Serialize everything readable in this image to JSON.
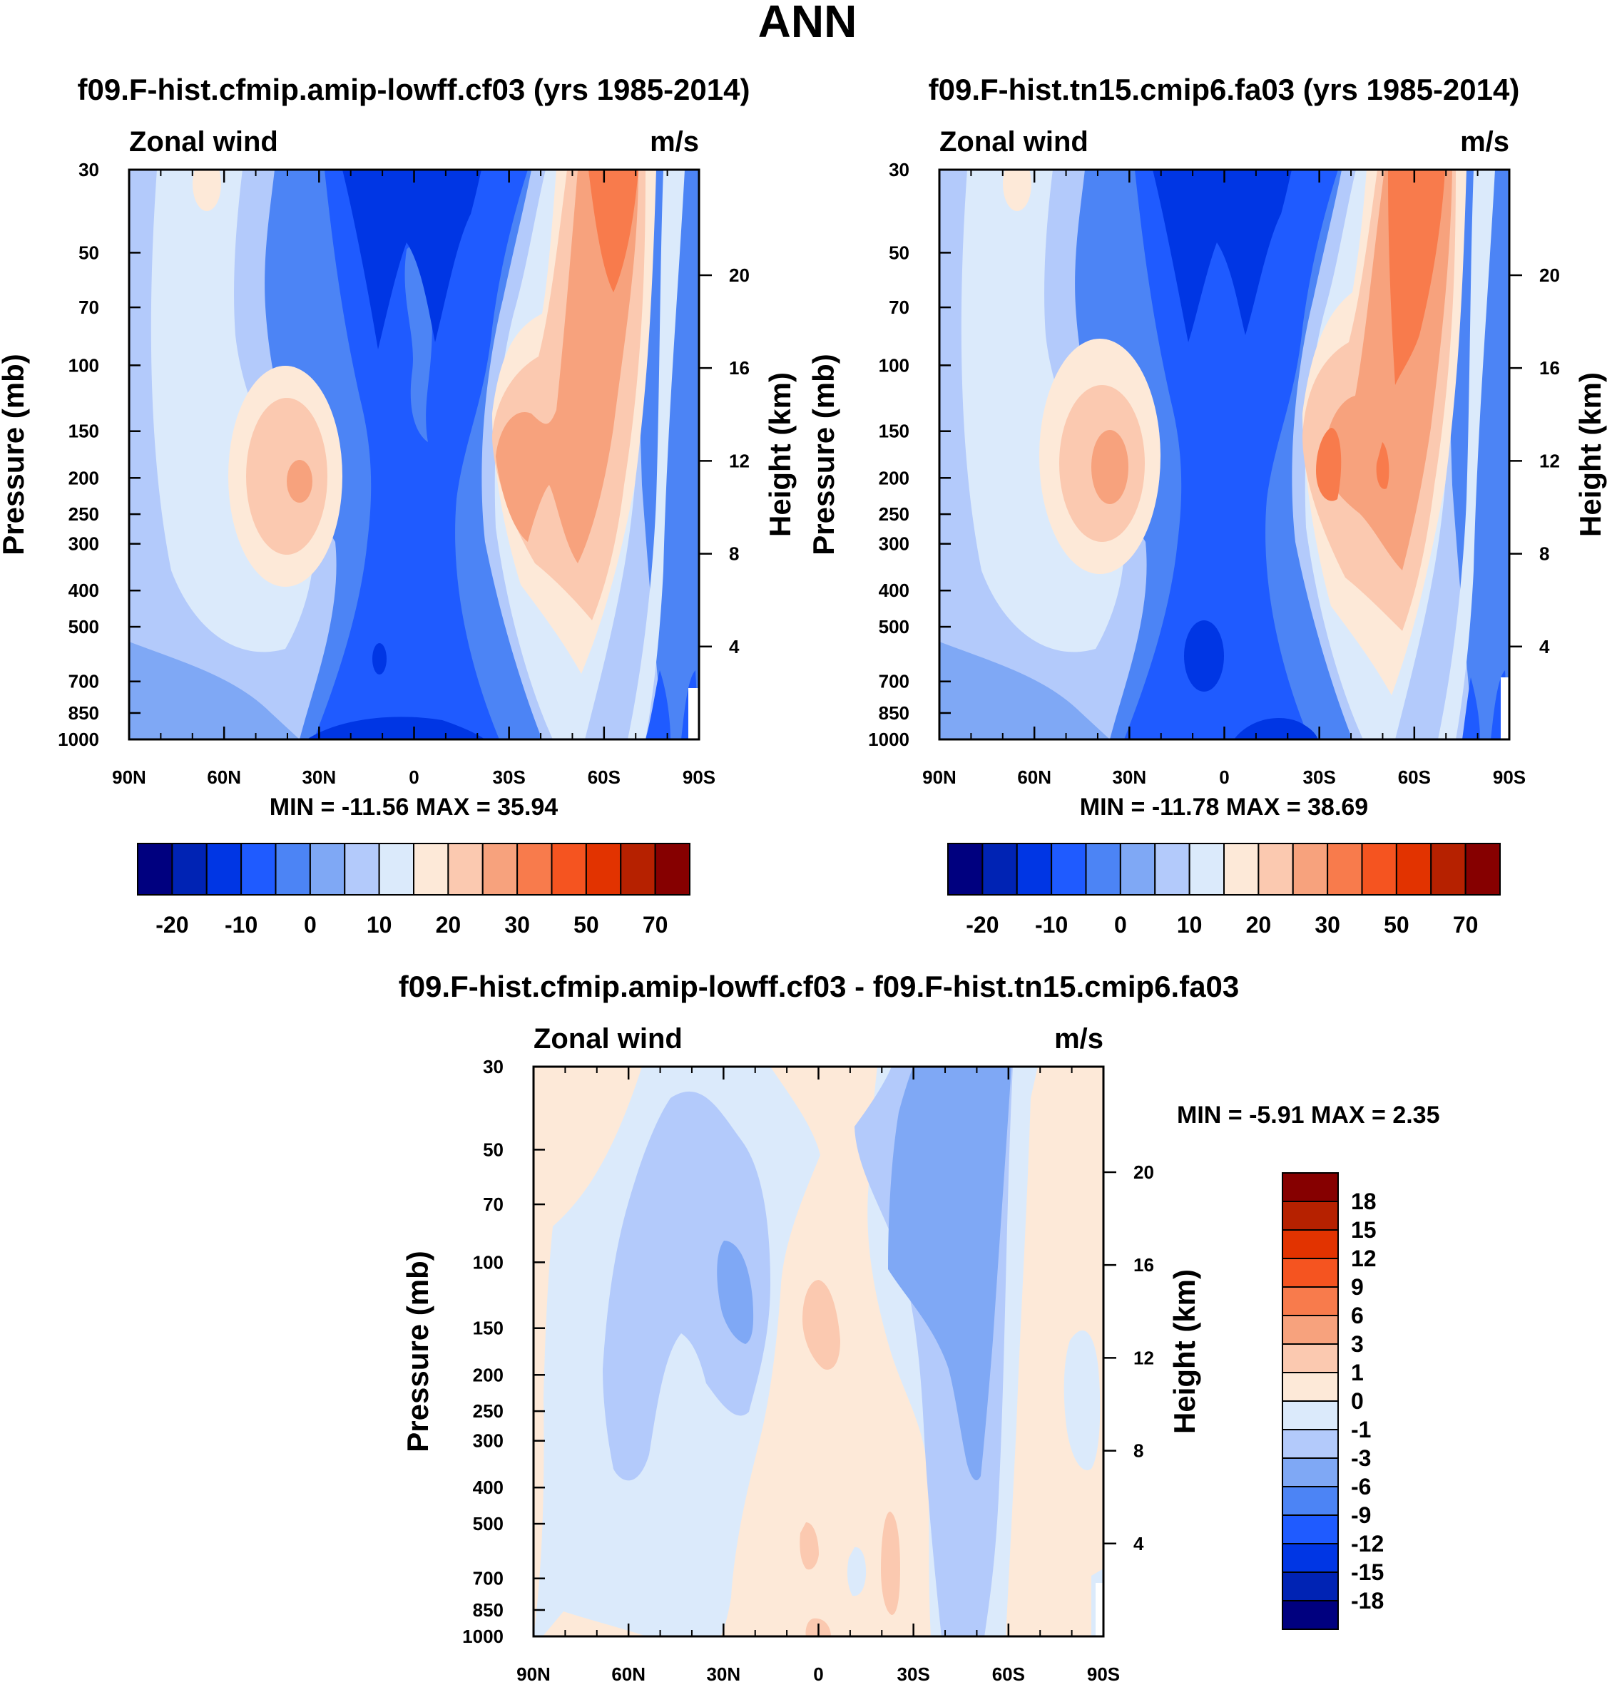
{
  "title": "ANN",
  "palette": [
    "#00007f",
    "#0023b4",
    "#0036e4",
    "#1f5bff",
    "#4c84f5",
    "#7fa8f5",
    "#b3cafb",
    "#dbeafb",
    "#fde9d8",
    "#fbc9b0",
    "#f7a27d",
    "#f87b4c",
    "#f55420",
    "#e23300",
    "#b62100",
    "#860000"
  ],
  "chart_data": [
    {
      "type": "contour",
      "title": "f09.F-hist.cfmip.amip-lowff.cf03 (yrs 1985-2014)",
      "left_label": "Zonal wind",
      "right_label": "m/s",
      "ylabel": "Pressure (mb)",
      "y2label": "Height (km)",
      "x_ticks": [
        "90N",
        "60N",
        "30N",
        "0",
        "30S",
        "60S",
        "90S"
      ],
      "x_range": [
        90,
        -90
      ],
      "y_ticks": [
        "30",
        "50",
        "70",
        "100",
        "150",
        "200",
        "250",
        "300",
        "400",
        "500",
        "700",
        "850",
        "1000"
      ],
      "y_range_mb": [
        30,
        1000
      ],
      "y2_ticks": [
        "20",
        "16",
        "12",
        "8",
        "4"
      ],
      "stats": "MIN = -11.56  MAX =  35.94",
      "colorbar_labels": [
        "-20",
        "-10",
        "0",
        "10",
        "20",
        "30",
        "50",
        "70"
      ],
      "min": -11.56,
      "max": 35.94
    },
    {
      "type": "contour",
      "title": "f09.F-hist.tn15.cmip6.fa03 (yrs 1985-2014)",
      "left_label": "Zonal wind",
      "right_label": "m/s",
      "ylabel": "Pressure (mb)",
      "y2label": "Height (km)",
      "x_ticks": [
        "90N",
        "60N",
        "30N",
        "0",
        "30S",
        "60S",
        "90S"
      ],
      "x_range": [
        90,
        -90
      ],
      "y_ticks": [
        "30",
        "50",
        "70",
        "100",
        "150",
        "200",
        "250",
        "300",
        "400",
        "500",
        "700",
        "850",
        "1000"
      ],
      "y_range_mb": [
        30,
        1000
      ],
      "y2_ticks": [
        "20",
        "16",
        "12",
        "8",
        "4"
      ],
      "stats": "MIN = -11.78  MAX =  38.69",
      "colorbar_labels": [
        "-20",
        "-10",
        "0",
        "10",
        "20",
        "30",
        "50",
        "70"
      ],
      "min": -11.78,
      "max": 38.69
    },
    {
      "type": "contour",
      "title": "f09.F-hist.cfmip.amip-lowff.cf03 - f09.F-hist.tn15.cmip6.fa03",
      "left_label": "Zonal wind",
      "right_label": "m/s",
      "ylabel": "Pressure (mb)",
      "y2label": "Height (km)",
      "x_ticks": [
        "90N",
        "60N",
        "30N",
        "0",
        "30S",
        "60S",
        "90S"
      ],
      "x_range": [
        90,
        -90
      ],
      "y_ticks": [
        "30",
        "50",
        "70",
        "100",
        "150",
        "200",
        "250",
        "300",
        "400",
        "500",
        "700",
        "850",
        "1000"
      ],
      "y_range_mb": [
        30,
        1000
      ],
      "y2_ticks": [
        "20",
        "16",
        "12",
        "8",
        "4"
      ],
      "stats": "MIN = -5.91  MAX =    2.35",
      "colorbar_labels": [
        "18",
        "15",
        "12",
        "9",
        "6",
        "3",
        "1",
        "0",
        "-1",
        "-3",
        "-6",
        "-9",
        "-12",
        "-15",
        "-18"
      ],
      "min": -5.91,
      "max": 2.35
    }
  ]
}
